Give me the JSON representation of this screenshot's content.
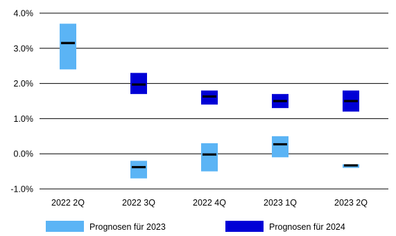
{
  "chart_data": {
    "type": "floating-range-bar",
    "title": "",
    "xlabel": "",
    "ylabel": "",
    "ylim": [
      -1.0,
      4.0
    ],
    "y_ticks": [
      {
        "value": 4.0,
        "label": "4.0%"
      },
      {
        "value": 3.0,
        "label": "3.0%"
      },
      {
        "value": 2.0,
        "label": "2.0%"
      },
      {
        "value": 1.0,
        "label": "1.0%"
      },
      {
        "value": 0.0,
        "label": "0.0%"
      },
      {
        "value": -1.0,
        "label": "-1.0%"
      }
    ],
    "grid": true,
    "categories": [
      "2022 2Q",
      "2022 3Q",
      "2022 4Q",
      "2023 1Q",
      "2023 2Q"
    ],
    "series": [
      {
        "name": "Prognosen für 2023",
        "color": "#5bb4f5",
        "ranges": [
          {
            "low": 2.4,
            "high": 3.7,
            "median": 3.15
          },
          {
            "low": -0.7,
            "high": -0.2,
            "median": -0.38
          },
          {
            "low": -0.5,
            "high": 0.3,
            "median": -0.02
          },
          {
            "low": -0.1,
            "high": 0.5,
            "median": 0.27
          },
          {
            "low": -0.4,
            "high": -0.3,
            "median": -0.33
          }
        ]
      },
      {
        "name": "Prognosen für 2024",
        "color": "#0000d6",
        "ranges": [
          null,
          {
            "low": 1.7,
            "high": 2.3,
            "median": 1.97
          },
          {
            "low": 1.4,
            "high": 1.8,
            "median": 1.63
          },
          {
            "low": 1.3,
            "high": 1.7,
            "median": 1.5
          },
          {
            "low": 1.2,
            "high": 1.8,
            "median": 1.5
          }
        ]
      }
    ],
    "legend": {
      "placement": "bottom"
    }
  }
}
